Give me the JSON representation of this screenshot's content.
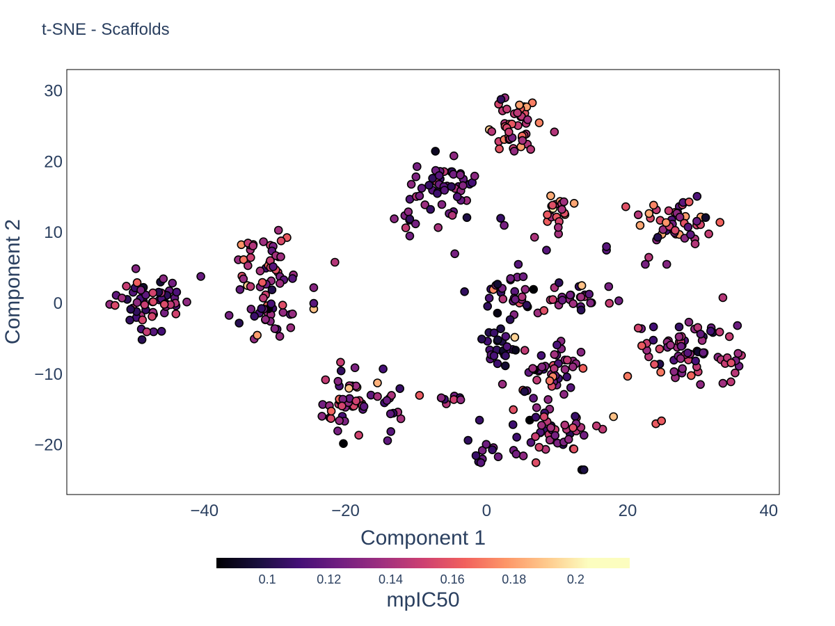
{
  "chart_data": {
    "type": "scatter",
    "title": "t-SNE - Scaffolds",
    "xlabel": "Component 1",
    "ylabel": "Component 2",
    "xlim": [
      -59.5,
      41.5
    ],
    "ylim": [
      -27,
      33
    ],
    "x_ticks": [
      -40,
      -20,
      0,
      20,
      40
    ],
    "x_tick_labels": [
      "−40",
      "−20",
      "0",
      "20",
      "40"
    ],
    "y_ticks": [
      -20,
      -10,
      0,
      10,
      20,
      30
    ],
    "y_tick_labels": [
      "−20",
      "−10",
      "0",
      "10",
      "20",
      "30"
    ],
    "grid": false,
    "colorbar": {
      "title": "mpIC50",
      "colorscale": "magma",
      "range": [
        0.0835,
        0.2175
      ],
      "ticks": [
        0.1,
        0.12,
        0.14,
        0.16,
        0.18,
        0.2
      ],
      "tick_labels": [
        "0.1",
        "0.12",
        "0.14",
        "0.16",
        "0.18",
        "0.2"
      ],
      "orientation": "horizontal",
      "placement": "bottom"
    },
    "clusters": [
      {
        "cx": -48,
        "cy": 0,
        "sx": 3.2,
        "sy": 2.3,
        "n": 60,
        "c": 0.13,
        "cs": 0.02
      },
      {
        "cx": -31.5,
        "cy": 5.5,
        "sx": 2.5,
        "sy": 3,
        "n": 45,
        "c": 0.15,
        "cs": 0.025
      },
      {
        "cx": -31,
        "cy": -1.5,
        "sx": 2.2,
        "sy": 1.8,
        "n": 25,
        "c": 0.13,
        "cs": 0.015
      },
      {
        "cx": -19,
        "cy": -14,
        "sx": 2.5,
        "sy": 3.2,
        "n": 40,
        "c": 0.14,
        "cs": 0.02
      },
      {
        "cx": -13.5,
        "cy": -16,
        "sx": 1.6,
        "sy": 2,
        "n": 12,
        "c": 0.13,
        "cs": 0.02
      },
      {
        "cx": -6,
        "cy": 16.5,
        "sx": 2.6,
        "sy": 2.6,
        "n": 50,
        "c": 0.125,
        "cs": 0.013
      },
      {
        "cx": -11,
        "cy": 12,
        "sx": 1.2,
        "sy": 1.4,
        "n": 8,
        "c": 0.13,
        "cs": 0.02
      },
      {
        "cx": 3.5,
        "cy": 25,
        "sx": 2.2,
        "sy": 2.5,
        "n": 45,
        "c": 0.16,
        "cs": 0.02
      },
      {
        "cx": 9.5,
        "cy": 13,
        "sx": 1.4,
        "sy": 1.7,
        "n": 20,
        "c": 0.165,
        "cs": 0.02
      },
      {
        "cx": 27,
        "cy": 12,
        "sx": 3,
        "sy": 1.9,
        "n": 45,
        "c": 0.155,
        "cs": 0.025
      },
      {
        "cx": 2,
        "cy": 1.5,
        "sx": 2.6,
        "sy": 2,
        "n": 25,
        "c": 0.12,
        "cs": 0.02
      },
      {
        "cx": 11.5,
        "cy": 0.5,
        "sx": 4.2,
        "sy": 1.5,
        "n": 30,
        "c": 0.125,
        "cs": 0.02
      },
      {
        "cx": 2,
        "cy": -6.5,
        "sx": 2,
        "sy": 1.6,
        "n": 25,
        "c": 0.11,
        "cs": 0.015
      },
      {
        "cx": 9,
        "cy": -9,
        "sx": 3.2,
        "sy": 2.4,
        "n": 45,
        "c": 0.135,
        "cs": 0.02
      },
      {
        "cx": 9.5,
        "cy": -18,
        "sx": 3.5,
        "sy": 2.2,
        "n": 45,
        "c": 0.13,
        "cs": 0.02
      },
      {
        "cx": 28,
        "cy": -6.5,
        "sx": 3.2,
        "sy": 2.6,
        "n": 60,
        "c": 0.135,
        "cs": 0.02
      },
      {
        "cx": -6,
        "cy": -13.3,
        "sx": 1.5,
        "sy": 0.5,
        "n": 8,
        "c": 0.12,
        "cs": 0.02
      },
      {
        "cx": 35,
        "cy": -8,
        "sx": 0.8,
        "sy": 2.5,
        "n": 10,
        "c": 0.145,
        "cs": 0.02
      },
      {
        "cx": 1.5,
        "cy": -21,
        "sx": 3,
        "sy": 1.8,
        "n": 10,
        "c": 0.13,
        "cs": 0.02
      }
    ],
    "points": [
      [
        -40.5,
        3.8,
        0.125
      ],
      [
        -36.5,
        -1.7,
        0.13
      ],
      [
        -27.5,
        3.5,
        0.12
      ],
      [
        -24.5,
        2.2,
        0.135
      ],
      [
        -24.5,
        -0.8,
        0.2
      ],
      [
        -24.5,
        0.0,
        0.12
      ],
      [
        -21.5,
        5.8,
        0.15
      ],
      [
        -4.5,
        7.0,
        0.13
      ],
      [
        2.0,
        12.0,
        0.11
      ],
      [
        2.5,
        11.0,
        0.13
      ],
      [
        4.5,
        5.5,
        0.12
      ],
      [
        8.5,
        7.5,
        0.12
      ],
      [
        17.0,
        7.5,
        0.12
      ],
      [
        17.0,
        8.0,
        0.12
      ],
      [
        21.5,
        12.5,
        0.15
      ],
      [
        22.5,
        5.5,
        0.13
      ],
      [
        23.0,
        6.5,
        0.15
      ],
      [
        31.5,
        9.8,
        0.155
      ],
      [
        33.5,
        0.8,
        0.15
      ],
      [
        13.5,
        2.5,
        0.2
      ],
      [
        4.0,
        -4.8,
        0.205
      ],
      [
        13.5,
        -23.5,
        0.09
      ],
      [
        13.8,
        -23.5,
        0.1
      ],
      [
        18.0,
        -16.0,
        0.2
      ],
      [
        24.0,
        -17.0,
        0.17
      ],
      [
        24.8,
        -16.6,
        0.17
      ],
      [
        20.0,
        -10.3,
        0.18
      ],
      [
        -9.5,
        -13.0,
        0.17
      ],
      [
        -19.5,
        -12.0,
        0.2
      ],
      [
        -20.5,
        -14.5,
        0.16
      ],
      [
        7.0,
        -22.5,
        0.165
      ],
      [
        -1.0,
        -16.5,
        0.11
      ],
      [
        -1.5,
        -21.5,
        0.11
      ],
      [
        -0.8,
        -22.5,
        0.12
      ],
      [
        21.5,
        -3.5,
        0.16
      ],
      [
        22.0,
        -6.0,
        0.17
      ],
      [
        -27.5,
        -1.5,
        0.14
      ],
      [
        -32.5,
        -4.5,
        0.19
      ]
    ]
  }
}
